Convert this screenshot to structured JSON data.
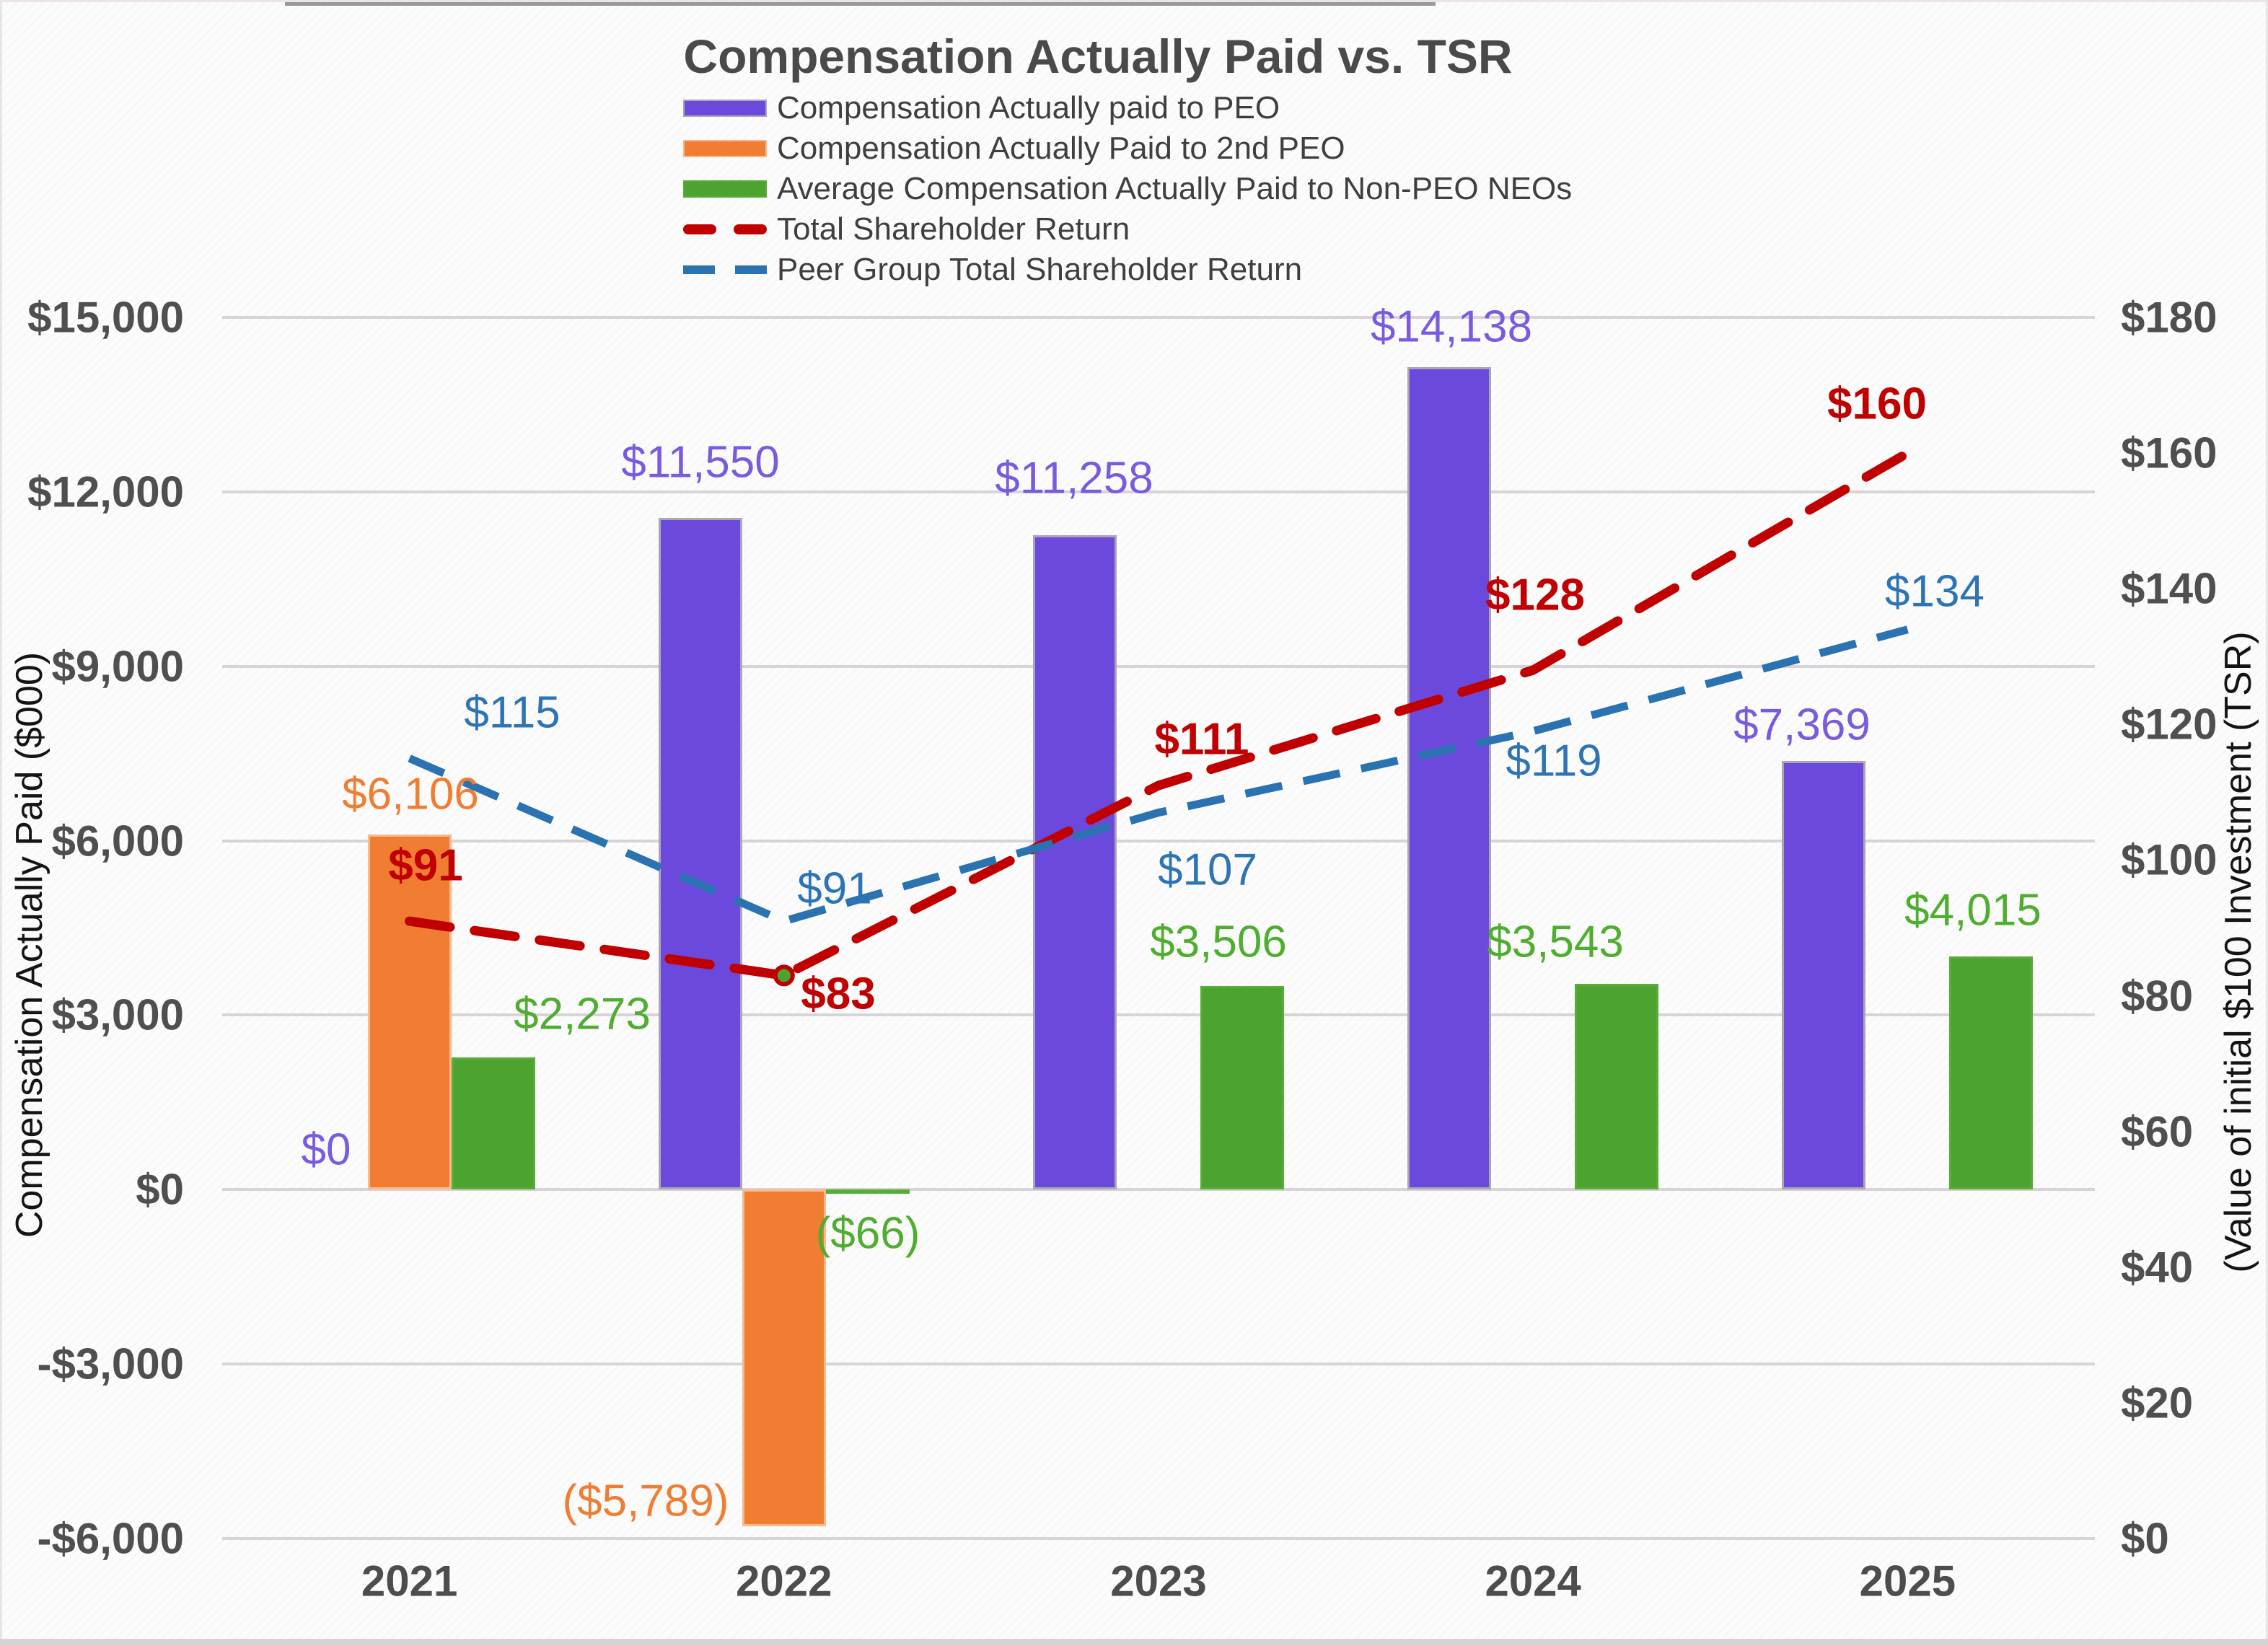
{
  "page": {
    "title": "Compensation Actually Paid vs. TSR"
  },
  "chart_data": {
    "type": "bar",
    "subtype": "combo-bar-line-dual-axis",
    "title": "Compensation Actually Paid vs. TSR",
    "categories": [
      "2021",
      "2022",
      "2023",
      "2024",
      "2025"
    ],
    "bar_series": [
      {
        "name": "Compensation Actually paid to PEO",
        "axis": "left",
        "color": "#6B49DC",
        "border_color": "#aaa7b2",
        "label_color": "#7A5BE0",
        "label_bold": false,
        "values": [
          0,
          11550,
          11258,
          14138,
          7369
        ],
        "labels": [
          "$0",
          "$11,550",
          "$11,258",
          "$14,138",
          "$7,369"
        ]
      },
      {
        "name": "Compensation Actually Paid to 2nd PEO",
        "axis": "left",
        "color": "#F07D31",
        "border_color": "#f6ba8c",
        "label_color": "#F07D31",
        "label_bold": false,
        "values": [
          6106,
          -5789,
          null,
          null,
          null
        ],
        "labels": [
          "$6,106",
          "($5,789)",
          "",
          "",
          ""
        ]
      },
      {
        "name": "Average Compensation Actually Paid to Non-PEO NEOs",
        "axis": "left",
        "color": "#4CA32F",
        "border_color": "#58ad37",
        "label_color": "#4FAD2F",
        "label_bold": false,
        "values": [
          2273,
          -66,
          3506,
          3543,
          4015
        ],
        "labels": [
          "$2,273",
          "($66)",
          "$3,506",
          "$3,543",
          "$4,015"
        ]
      }
    ],
    "line_series": [
      {
        "name": "Total Shareholder Return",
        "axis": "right",
        "color": "#C00000",
        "label_color": "#C00000",
        "label_bold": true,
        "dash": "57 34",
        "width": 13,
        "linecap": "round",
        "values": [
          91,
          83,
          111,
          128,
          160
        ],
        "labels": [
          "$91",
          "$83",
          "$111",
          "$128",
          "$160"
        ]
      },
      {
        "name": "Peer Group Total Shareholder Return",
        "axis": "right",
        "color": "#2B72B0",
        "label_color": "#2E74B5",
        "label_bold": false,
        "dash": "52 30",
        "width": 11,
        "linecap": "butt",
        "values": [
          115,
          91,
          107,
          119,
          134
        ],
        "labels": [
          "$115",
          "$91",
          "$107",
          "$119",
          "$134"
        ]
      }
    ],
    "marker": {
      "series": "Total Shareholder Return",
      "category": "2022",
      "value": 83,
      "fill": "#4CA32F",
      "outline": "#C00000"
    },
    "left_axis": {
      "title": "Compensation Actually Paid ($000)",
      "min": -6000,
      "max": 15000,
      "step": 3000,
      "tick_labels": [
        "$15,000",
        "$12,000",
        "$9,000",
        "$6,000",
        "$3,000",
        "$0",
        "-$3,000",
        "-$6,000"
      ]
    },
    "right_axis": {
      "title": "(Value of initial $100 Investment (TSR)",
      "min": 0,
      "max": 180,
      "step": 20,
      "tick_labels": [
        "$180",
        "$160",
        "$140",
        "$120",
        "$100",
        "$80",
        "$60",
        "$40",
        "$20",
        "$0"
      ]
    },
    "grid": true,
    "legend_position": "top"
  },
  "legend": {
    "entries": [
      {
        "label": "Compensation Actually paid to PEO",
        "swatch": "bar",
        "color": "#6B49DC",
        "border": "#aaa7b2"
      },
      {
        "label": "Compensation Actually Paid to 2nd PEO",
        "swatch": "bar",
        "color": "#F07D31",
        "border": "#f6ba8c"
      },
      {
        "label": "Average Compensation Actually Paid to Non-PEO NEOs",
        "swatch": "bar",
        "color": "#4CA32F",
        "border": "#58ad37"
      },
      {
        "label": "Total Shareholder Return",
        "swatch": "dash-round",
        "color": "#C00000"
      },
      {
        "label": "Peer Group Total Shareholder Return",
        "swatch": "dash-square",
        "color": "#2B72B0"
      }
    ]
  }
}
